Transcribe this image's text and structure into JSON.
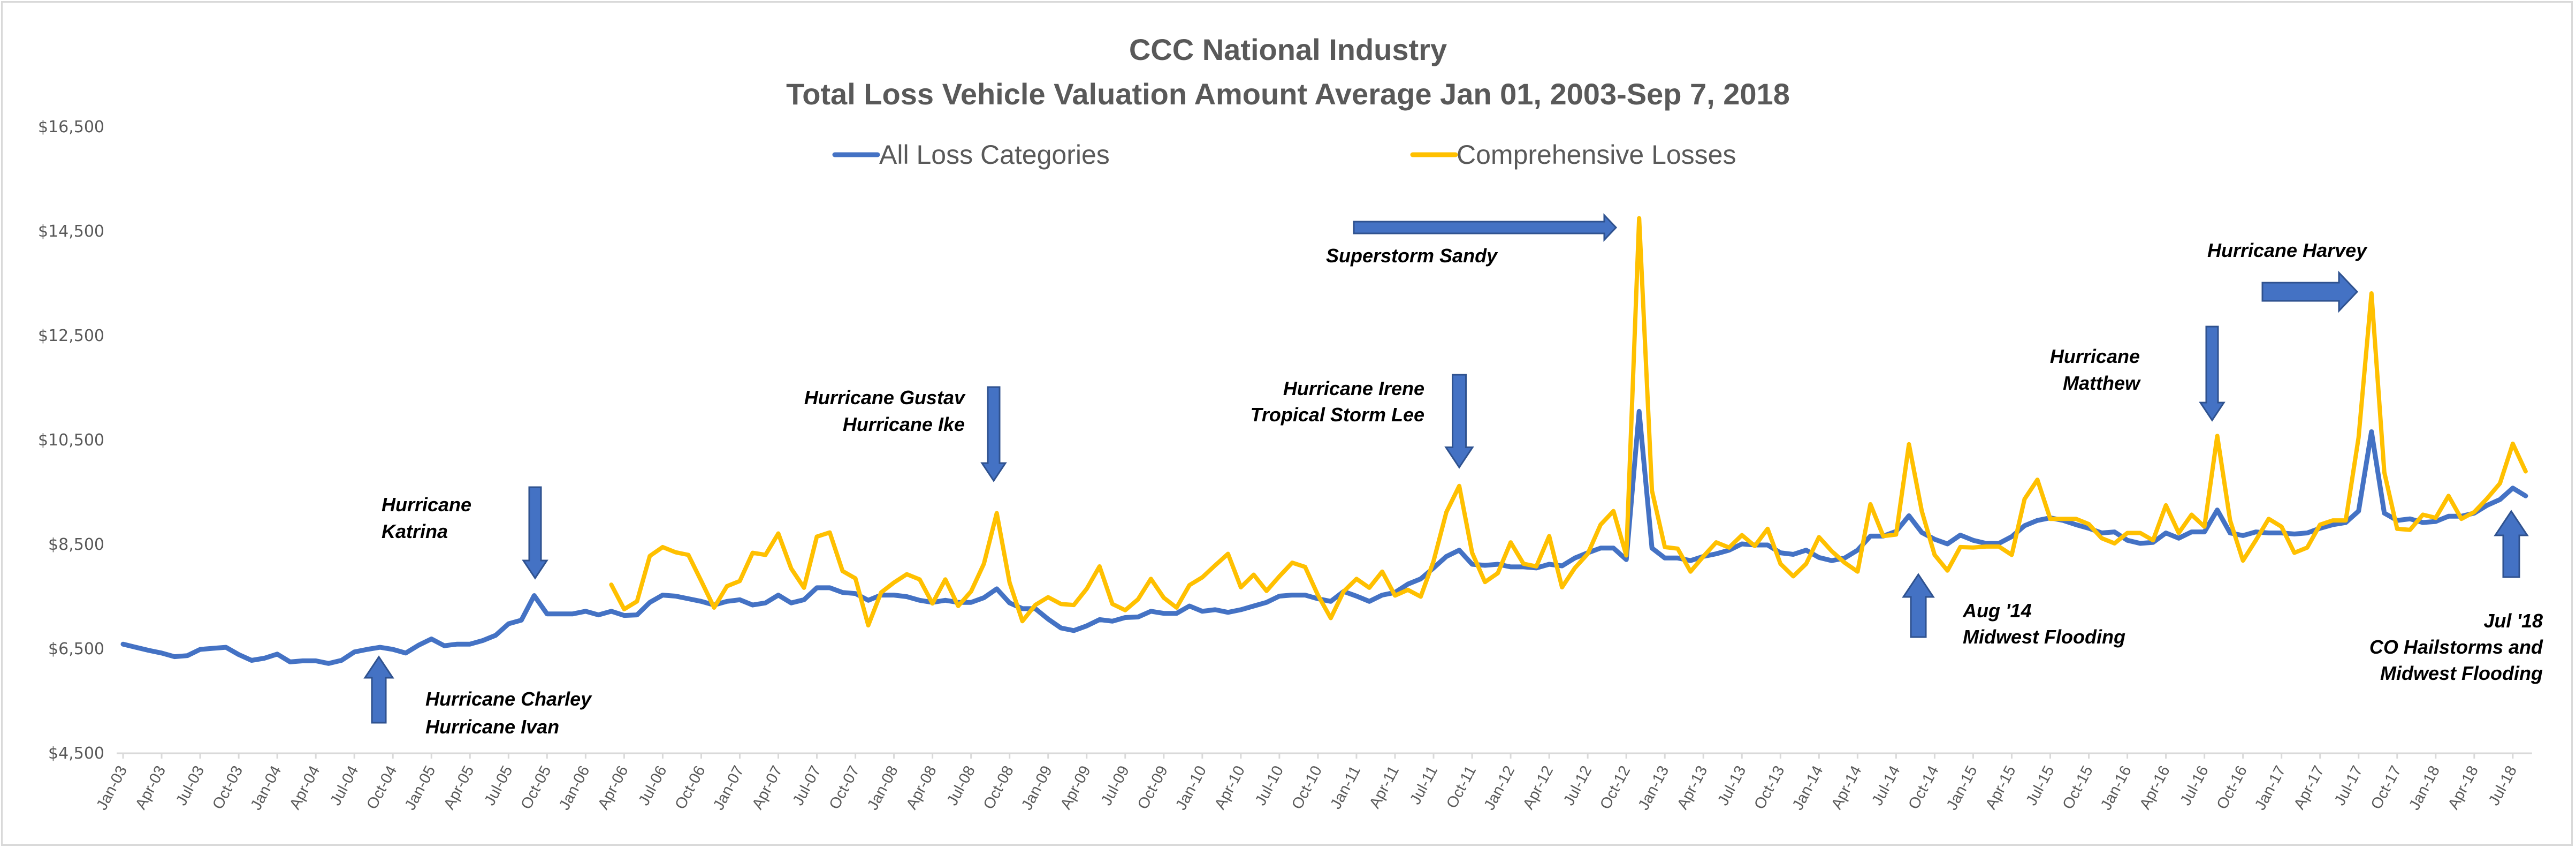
{
  "chart_data": {
    "type": "line",
    "title": "CCC National Industry",
    "subtitle": "Total Loss Vehicle Valuation Amount Average Jan 01, 2003-Sep 7, 2018",
    "xlabel": "",
    "ylabel": "",
    "ylim": [
      4500,
      16500
    ],
    "yticks": [
      4500,
      6500,
      8500,
      10500,
      12500,
      14500,
      16500
    ],
    "ytick_labels": [
      "$4,500",
      "$6,500",
      "$8,500",
      "$10,500",
      "$12,500",
      "$14,500",
      "$16,500"
    ],
    "grid": false,
    "legend_position": "top-center",
    "x_start": "Jan-03",
    "x_end": "Aug-18",
    "x_interval": "monthly",
    "xtick_labels": [
      "Jan-03",
      "Apr-03",
      "Jul-03",
      "Oct-03",
      "Jan-04",
      "Apr-04",
      "Jul-04",
      "Oct-04",
      "Jan-05",
      "Apr-05",
      "Jul-05",
      "Oct-05",
      "Jan-06",
      "Apr-06",
      "Jul-06",
      "Oct-06",
      "Jan-07",
      "Apr-07",
      "Jul-07",
      "Oct-07",
      "Jan-08",
      "Apr-08",
      "Jul-08",
      "Oct-08",
      "Jan-09",
      "Apr-09",
      "Jul-09",
      "Oct-09",
      "Jan-10",
      "Apr-10",
      "Jul-10",
      "Oct-10",
      "Jan-11",
      "Apr-11",
      "Jul-11",
      "Oct-11",
      "Jan-12",
      "Apr-12",
      "Jul-12",
      "Oct-12",
      "Jan-13",
      "Apr-13",
      "Jul-13",
      "Oct-13",
      "Jan-14",
      "Apr-14",
      "Jul-14",
      "Oct-14",
      "Jan-15",
      "Apr-15",
      "Jul-15",
      "Oct-15",
      "Jan-16",
      "Apr-16",
      "Jul-16",
      "Oct-16",
      "Jan-17",
      "Apr-17",
      "Jul-17",
      "Oct-17",
      "Jan-18",
      "Apr-18",
      "Jul-18"
    ],
    "series": [
      {
        "name": "All Loss Categories",
        "color": "#4472c4",
        "values": [
          6590,
          6530,
          6470,
          6420,
          6350,
          6370,
          6490,
          6510,
          6530,
          6390,
          6280,
          6320,
          6400,
          6250,
          6270,
          6270,
          6220,
          6280,
          6440,
          6490,
          6530,
          6490,
          6420,
          6570,
          6690,
          6560,
          6590,
          6590,
          6660,
          6760,
          6980,
          7050,
          7520,
          7170,
          7170,
          7170,
          7220,
          7150,
          7220,
          7140,
          7150,
          7390,
          7530,
          7510,
          7460,
          7410,
          7340,
          7410,
          7440,
          7340,
          7380,
          7530,
          7380,
          7440,
          7670,
          7670,
          7580,
          7560,
          7430,
          7530,
          7530,
          7500,
          7430,
          7390,
          7430,
          7390,
          7390,
          7480,
          7650,
          7380,
          7270,
          7270,
          7070,
          6900,
          6850,
          6940,
          7060,
          7030,
          7100,
          7110,
          7220,
          7180,
          7180,
          7320,
          7220,
          7250,
          7200,
          7250,
          7320,
          7390,
          7510,
          7530,
          7530,
          7460,
          7410,
          7600,
          7510,
          7410,
          7530,
          7580,
          7740,
          7840,
          8050,
          8270,
          8390,
          8120,
          8100,
          8120,
          8070,
          8070,
          8050,
          8120,
          8090,
          8240,
          8340,
          8430,
          8430,
          8210,
          11050,
          8430,
          8240,
          8240,
          8190,
          8270,
          8320,
          8390,
          8510,
          8490,
          8490,
          8340,
          8310,
          8390,
          8250,
          8190,
          8240,
          8390,
          8660,
          8660,
          8750,
          9050,
          8730,
          8600,
          8510,
          8680,
          8580,
          8520,
          8520,
          8650,
          8860,
          8960,
          9010,
          8960,
          8880,
          8810,
          8720,
          8740,
          8580,
          8520,
          8540,
          8720,
          8620,
          8740,
          8740,
          9160,
          8720,
          8670,
          8740,
          8720,
          8720,
          8700,
          8720,
          8810,
          8880,
          8920,
          9140,
          10660,
          9100,
          8960,
          8990,
          8920,
          8940,
          9040,
          9040,
          9100,
          9250,
          9360,
          9580,
          9430
        ]
      },
      {
        "name": "Comprehensive Losses",
        "color": "#ffc000",
        "values": [
          null,
          null,
          null,
          null,
          null,
          null,
          null,
          null,
          null,
          null,
          null,
          null,
          null,
          null,
          null,
          null,
          null,
          null,
          null,
          null,
          null,
          null,
          null,
          null,
          null,
          null,
          null,
          null,
          null,
          null,
          null,
          null,
          null,
          null,
          null,
          null,
          null,
          null,
          7730,
          7260,
          7410,
          8280,
          8450,
          8350,
          8300,
          7800,
          7290,
          7700,
          7800,
          8340,
          8300,
          8710,
          8040,
          7670,
          8650,
          8730,
          7990,
          7850,
          6950,
          7580,
          7770,
          7930,
          7830,
          7370,
          7830,
          7320,
          7600,
          8130,
          9100,
          7770,
          7030,
          7340,
          7490,
          7360,
          7340,
          7650,
          8080,
          7360,
          7240,
          7450,
          7840,
          7480,
          7290,
          7720,
          7870,
          8100,
          8320,
          7680,
          7920,
          7610,
          7890,
          8150,
          8070,
          7530,
          7090,
          7600,
          7840,
          7670,
          7980,
          7520,
          7630,
          7500,
          8180,
          9120,
          9620,
          8340,
          7780,
          7950,
          8540,
          8130,
          8080,
          8660,
          7680,
          8050,
          8320,
          8880,
          9140,
          8290,
          14750,
          9530,
          8450,
          8420,
          7980,
          8270,
          8540,
          8440,
          8680,
          8470,
          8800,
          8130,
          7890,
          8130,
          8640,
          8370,
          8150,
          7980,
          9270,
          8660,
          8690,
          10420,
          9140,
          8300,
          8000,
          8450,
          8440,
          8460,
          8460,
          8300,
          9370,
          9740,
          8990,
          8990,
          8990,
          8890,
          8620,
          8520,
          8720,
          8720,
          8580,
          9250,
          8720,
          9070,
          8840,
          10580,
          8960,
          8190,
          8580,
          8990,
          8840,
          8340,
          8440,
          8880,
          8960,
          8960,
          10550,
          13310,
          9880,
          8800,
          8780,
          9070,
          9010,
          9430,
          8990,
          9120,
          9380,
          9670,
          10430,
          9900
        ]
      }
    ],
    "annotations": [
      {
        "id": "charley-ivan",
        "lines": [
          "Hurricane Charley",
          "Hurricane Ivan"
        ],
        "month_index": 20,
        "arrow": "up"
      },
      {
        "id": "katrina",
        "lines": [
          "Hurricane",
          "Katrina"
        ],
        "month_index": 32,
        "arrow": "down"
      },
      {
        "id": "gustav-ike",
        "lines": [
          "Hurricane Gustav",
          "Hurricane Ike"
        ],
        "month_index": 68,
        "arrow": "down"
      },
      {
        "id": "irene-lee",
        "lines": [
          "Hurricane Irene",
          "Tropical Storm Lee"
        ],
        "month_index": 104,
        "arrow": "down"
      },
      {
        "id": "sandy",
        "lines": [
          "Superstorm Sandy"
        ],
        "month_index": 118,
        "arrow": "right"
      },
      {
        "id": "aug14",
        "lines": [
          "Aug '14",
          "Midwest Flooding"
        ],
        "month_index": 139,
        "arrow": "up"
      },
      {
        "id": "matthew",
        "lines": [
          "Hurricane",
          "Matthew"
        ],
        "month_index": 163,
        "arrow": "down"
      },
      {
        "id": "harvey",
        "lines": [
          "Hurricane Harvey"
        ],
        "month_index": 175,
        "arrow": "right"
      },
      {
        "id": "jul18",
        "lines": [
          "Jul '18",
          "CO Hailstorms and",
          "Midwest Flooding"
        ],
        "month_index": 186,
        "arrow": "up"
      }
    ]
  }
}
